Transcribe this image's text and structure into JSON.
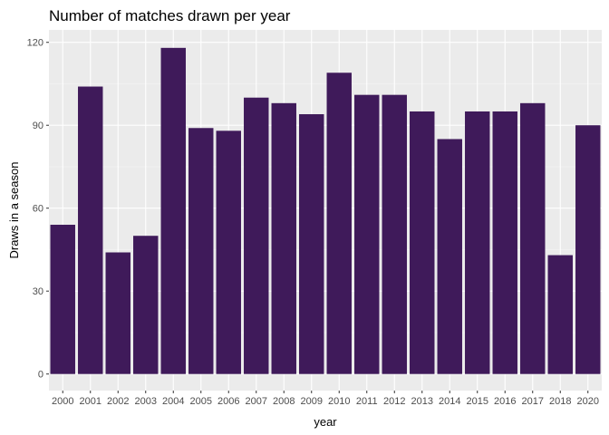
{
  "chart_data": {
    "type": "bar",
    "title": "Number of matches drawn per year",
    "xlabel": "year",
    "ylabel": "Draws in a season",
    "categories": [
      "2000",
      "2001",
      "2002",
      "2003",
      "2004",
      "2005",
      "2006",
      "2007",
      "2008",
      "2009",
      "2010",
      "2011",
      "2012",
      "2013",
      "2014",
      "2015",
      "2016",
      "2017",
      "2018",
      "2020"
    ],
    "values": [
      54,
      104,
      44,
      50,
      118,
      89,
      88,
      100,
      98,
      94,
      109,
      101,
      101,
      95,
      85,
      95,
      95,
      98,
      43,
      90
    ],
    "yticks": [
      0,
      30,
      60,
      90,
      120
    ],
    "ylim": [
      -6,
      124.5
    ],
    "grid": true,
    "legend": "none",
    "colors": {
      "bar": "#3f1a5a",
      "panel": "#ebebeb",
      "grid_major": "#ffffff",
      "grid_minor": "#f5f5f5"
    }
  }
}
